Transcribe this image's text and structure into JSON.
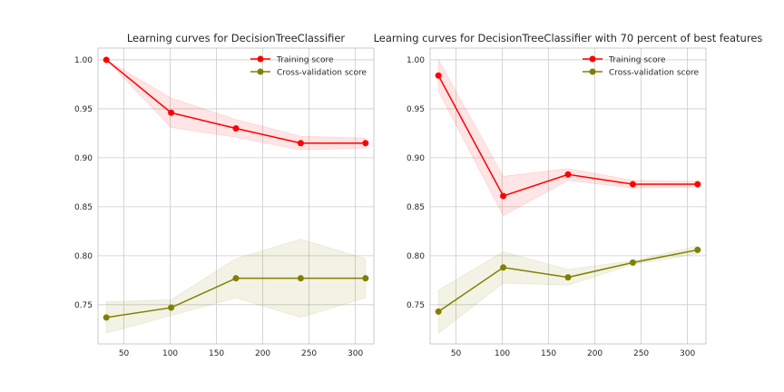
{
  "chart_data": [
    {
      "type": "line",
      "title": "Learning curves for DecisionTreeClassifier",
      "xlabel": "",
      "ylabel": "",
      "xlim": [
        22,
        320
      ],
      "ylim": [
        0.71,
        1.012
      ],
      "xticks": [
        50,
        100,
        150,
        200,
        250,
        300
      ],
      "yticks": [
        0.75,
        0.8,
        0.85,
        0.9,
        0.95,
        1.0
      ],
      "grid": true,
      "legend": "top-right",
      "x": [
        31,
        101,
        171,
        241,
        311
      ],
      "series": [
        {
          "name": "Training score",
          "color": "#ff0000",
          "values": [
            1.0,
            0.946,
            0.93,
            0.915,
            0.915
          ],
          "band_upper": [
            1.0,
            0.961,
            0.939,
            0.922,
            0.92
          ],
          "band_lower": [
            1.0,
            0.931,
            0.921,
            0.908,
            0.91
          ]
        },
        {
          "name": "Cross-validation score",
          "color": "#808000",
          "values": [
            0.737,
            0.747,
            0.777,
            0.777,
            0.777
          ],
          "band_upper": [
            0.753,
            0.755,
            0.797,
            0.817,
            0.797
          ],
          "band_lower": [
            0.721,
            0.739,
            0.757,
            0.737,
            0.757
          ]
        }
      ]
    },
    {
      "type": "line",
      "title": "Learning curves for DecisionTreeClassifier with 70 percent of best features",
      "xlabel": "",
      "ylabel": "",
      "xlim": [
        22,
        320
      ],
      "ylim": [
        0.71,
        1.012
      ],
      "xticks": [
        50,
        100,
        150,
        200,
        250,
        300
      ],
      "yticks": [
        0.75,
        0.8,
        0.85,
        0.9,
        0.95,
        1.0
      ],
      "grid": true,
      "legend": "top-right",
      "x": [
        31,
        101,
        171,
        241,
        311
      ],
      "series": [
        {
          "name": "Training score",
          "color": "#ff0000",
          "values": [
            0.984,
            0.861,
            0.883,
            0.873,
            0.873
          ],
          "band_upper": [
            1.0,
            0.881,
            0.889,
            0.877,
            0.876
          ],
          "band_lower": [
            0.968,
            0.841,
            0.877,
            0.869,
            0.87
          ]
        },
        {
          "name": "Cross-validation score",
          "color": "#808000",
          "values": [
            0.743,
            0.788,
            0.778,
            0.793,
            0.806
          ],
          "band_upper": [
            0.765,
            0.804,
            0.786,
            0.795,
            0.81
          ],
          "band_lower": [
            0.721,
            0.772,
            0.77,
            0.791,
            0.802
          ]
        }
      ]
    }
  ]
}
